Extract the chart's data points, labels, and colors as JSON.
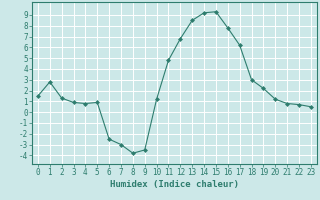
{
  "x": [
    0,
    1,
    2,
    3,
    4,
    5,
    6,
    7,
    8,
    9,
    10,
    11,
    12,
    13,
    14,
    15,
    16,
    17,
    18,
    19,
    20,
    21,
    22,
    23
  ],
  "y": [
    1.5,
    2.8,
    1.3,
    0.9,
    0.8,
    0.9,
    -2.5,
    -3.0,
    -3.8,
    -3.5,
    1.2,
    4.8,
    6.8,
    8.5,
    9.2,
    9.3,
    7.8,
    6.2,
    3.0,
    2.2,
    1.2,
    0.8,
    0.7,
    0.5
  ],
  "line_color": "#2e7d6e",
  "marker": "D",
  "marker_size": 2.0,
  "bg_color": "#cce8e8",
  "grid_color": "#ffffff",
  "xlabel": "Humidex (Indice chaleur)",
  "xlim": [
    -0.5,
    23.5
  ],
  "ylim": [
    -4.8,
    10.2
  ],
  "yticks": [
    -4,
    -3,
    -2,
    -1,
    0,
    1,
    2,
    3,
    4,
    5,
    6,
    7,
    8,
    9
  ],
  "xticks": [
    0,
    1,
    2,
    3,
    4,
    5,
    6,
    7,
    8,
    9,
    10,
    11,
    12,
    13,
    14,
    15,
    16,
    17,
    18,
    19,
    20,
    21,
    22,
    23
  ],
  "label_fontsize": 6.5,
  "tick_fontsize": 5.5
}
